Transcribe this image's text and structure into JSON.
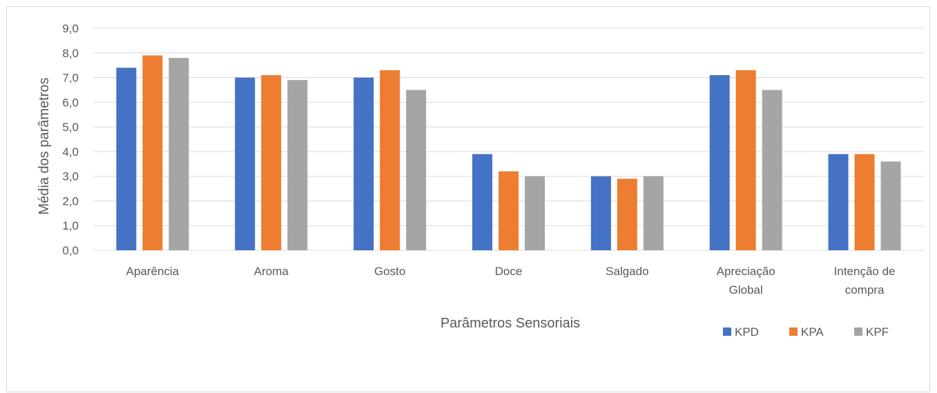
{
  "chart_data": {
    "type": "bar",
    "categories": [
      [
        "Aparência"
      ],
      [
        "Aroma"
      ],
      [
        "Gosto"
      ],
      [
        "Doce"
      ],
      [
        "Salgado"
      ],
      [
        "Apreciação",
        "Global"
      ],
      [
        "Intenção de",
        "compra"
      ]
    ],
    "series": [
      {
        "name": "KPD",
        "color": "#4472c4",
        "values": [
          7.4,
          7.0,
          7.0,
          3.9,
          3.0,
          7.1,
          3.9
        ]
      },
      {
        "name": "KPA",
        "color": "#ed7d31",
        "values": [
          7.9,
          7.1,
          7.3,
          3.2,
          2.9,
          7.3,
          3.9
        ]
      },
      {
        "name": "KPF",
        "color": "#a5a5a5",
        "values": [
          7.8,
          6.9,
          6.5,
          3.0,
          3.0,
          6.5,
          3.6
        ]
      }
    ],
    "xlabel": "Parâmetros Sensoriais",
    "ylabel": "Média dos parâmetros",
    "ylim": [
      0,
      9
    ],
    "y_ticks": [
      "0,0",
      "1,0",
      "2,0",
      "3,0",
      "4,0",
      "5,0",
      "6,0",
      "7,0",
      "8,0",
      "9,0"
    ],
    "grid": true,
    "legend_position": "bottom-right"
  }
}
